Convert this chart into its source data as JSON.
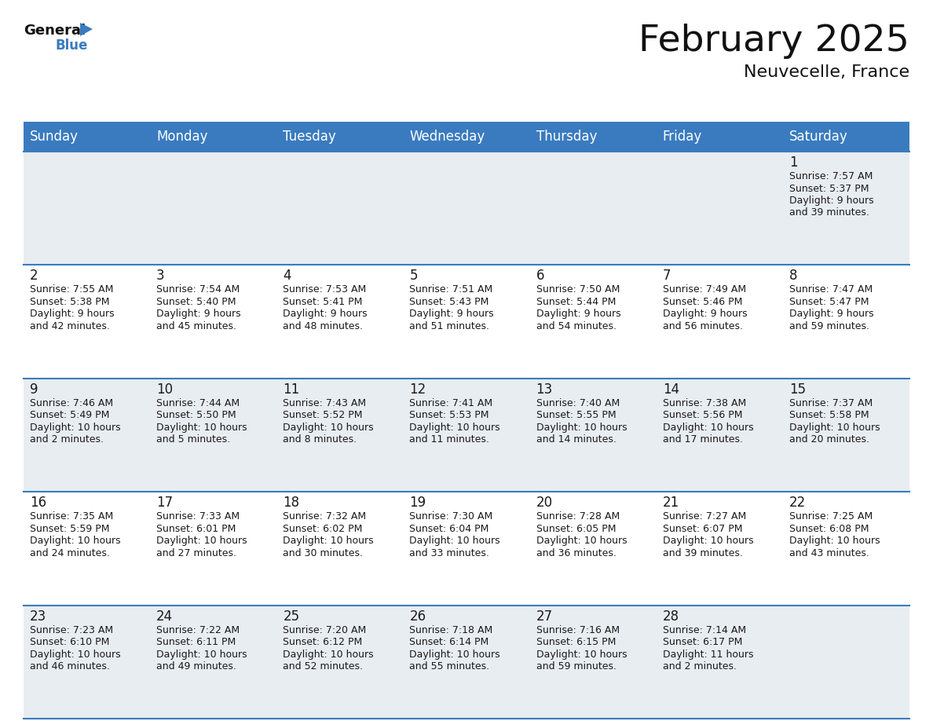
{
  "title": "February 2025",
  "subtitle": "Neuvecelle, France",
  "header_color": "#3a7bbf",
  "header_text_color": "#ffffff",
  "bg_color": "#ffffff",
  "cell_bg_row0": "#e8edf2",
  "cell_bg_row1": "#ffffff",
  "cell_bg_row2": "#e8edf2",
  "cell_bg_row3": "#ffffff",
  "cell_bg_row4": "#e8edf2",
  "line_color": "#3a7bbf",
  "text_color": "#1a1a1a",
  "day_headers": [
    "Sunday",
    "Monday",
    "Tuesday",
    "Wednesday",
    "Thursday",
    "Friday",
    "Saturday"
  ],
  "title_fontsize": 34,
  "subtitle_fontsize": 16,
  "header_fontsize": 12,
  "day_num_fontsize": 12,
  "cell_text_fontsize": 9,
  "logo_general_fontsize": 13,
  "logo_blue_fontsize": 12,
  "days": [
    {
      "day": 1,
      "col": 6,
      "row": 0,
      "sunrise": "7:57 AM",
      "sunset": "5:37 PM",
      "daylight": "9 hours and 39 minutes."
    },
    {
      "day": 2,
      "col": 0,
      "row": 1,
      "sunrise": "7:55 AM",
      "sunset": "5:38 PM",
      "daylight": "9 hours and 42 minutes."
    },
    {
      "day": 3,
      "col": 1,
      "row": 1,
      "sunrise": "7:54 AM",
      "sunset": "5:40 PM",
      "daylight": "9 hours and 45 minutes."
    },
    {
      "day": 4,
      "col": 2,
      "row": 1,
      "sunrise": "7:53 AM",
      "sunset": "5:41 PM",
      "daylight": "9 hours and 48 minutes."
    },
    {
      "day": 5,
      "col": 3,
      "row": 1,
      "sunrise": "7:51 AM",
      "sunset": "5:43 PM",
      "daylight": "9 hours and 51 minutes."
    },
    {
      "day": 6,
      "col": 4,
      "row": 1,
      "sunrise": "7:50 AM",
      "sunset": "5:44 PM",
      "daylight": "9 hours and 54 minutes."
    },
    {
      "day": 7,
      "col": 5,
      "row": 1,
      "sunrise": "7:49 AM",
      "sunset": "5:46 PM",
      "daylight": "9 hours and 56 minutes."
    },
    {
      "day": 8,
      "col": 6,
      "row": 1,
      "sunrise": "7:47 AM",
      "sunset": "5:47 PM",
      "daylight": "9 hours and 59 minutes."
    },
    {
      "day": 9,
      "col": 0,
      "row": 2,
      "sunrise": "7:46 AM",
      "sunset": "5:49 PM",
      "daylight": "10 hours and 2 minutes."
    },
    {
      "day": 10,
      "col": 1,
      "row": 2,
      "sunrise": "7:44 AM",
      "sunset": "5:50 PM",
      "daylight": "10 hours and 5 minutes."
    },
    {
      "day": 11,
      "col": 2,
      "row": 2,
      "sunrise": "7:43 AM",
      "sunset": "5:52 PM",
      "daylight": "10 hours and 8 minutes."
    },
    {
      "day": 12,
      "col": 3,
      "row": 2,
      "sunrise": "7:41 AM",
      "sunset": "5:53 PM",
      "daylight": "10 hours and 11 minutes."
    },
    {
      "day": 13,
      "col": 4,
      "row": 2,
      "sunrise": "7:40 AM",
      "sunset": "5:55 PM",
      "daylight": "10 hours and 14 minutes."
    },
    {
      "day": 14,
      "col": 5,
      "row": 2,
      "sunrise": "7:38 AM",
      "sunset": "5:56 PM",
      "daylight": "10 hours and 17 minutes."
    },
    {
      "day": 15,
      "col": 6,
      "row": 2,
      "sunrise": "7:37 AM",
      "sunset": "5:58 PM",
      "daylight": "10 hours and 20 minutes."
    },
    {
      "day": 16,
      "col": 0,
      "row": 3,
      "sunrise": "7:35 AM",
      "sunset": "5:59 PM",
      "daylight": "10 hours and 24 minutes."
    },
    {
      "day": 17,
      "col": 1,
      "row": 3,
      "sunrise": "7:33 AM",
      "sunset": "6:01 PM",
      "daylight": "10 hours and 27 minutes."
    },
    {
      "day": 18,
      "col": 2,
      "row": 3,
      "sunrise": "7:32 AM",
      "sunset": "6:02 PM",
      "daylight": "10 hours and 30 minutes."
    },
    {
      "day": 19,
      "col": 3,
      "row": 3,
      "sunrise": "7:30 AM",
      "sunset": "6:04 PM",
      "daylight": "10 hours and 33 minutes."
    },
    {
      "day": 20,
      "col": 4,
      "row": 3,
      "sunrise": "7:28 AM",
      "sunset": "6:05 PM",
      "daylight": "10 hours and 36 minutes."
    },
    {
      "day": 21,
      "col": 5,
      "row": 3,
      "sunrise": "7:27 AM",
      "sunset": "6:07 PM",
      "daylight": "10 hours and 39 minutes."
    },
    {
      "day": 22,
      "col": 6,
      "row": 3,
      "sunrise": "7:25 AM",
      "sunset": "6:08 PM",
      "daylight": "10 hours and 43 minutes."
    },
    {
      "day": 23,
      "col": 0,
      "row": 4,
      "sunrise": "7:23 AM",
      "sunset": "6:10 PM",
      "daylight": "10 hours and 46 minutes."
    },
    {
      "day": 24,
      "col": 1,
      "row": 4,
      "sunrise": "7:22 AM",
      "sunset": "6:11 PM",
      "daylight": "10 hours and 49 minutes."
    },
    {
      "day": 25,
      "col": 2,
      "row": 4,
      "sunrise": "7:20 AM",
      "sunset": "6:12 PM",
      "daylight": "10 hours and 52 minutes."
    },
    {
      "day": 26,
      "col": 3,
      "row": 4,
      "sunrise": "7:18 AM",
      "sunset": "6:14 PM",
      "daylight": "10 hours and 55 minutes."
    },
    {
      "day": 27,
      "col": 4,
      "row": 4,
      "sunrise": "7:16 AM",
      "sunset": "6:15 PM",
      "daylight": "10 hours and 59 minutes."
    },
    {
      "day": 28,
      "col": 5,
      "row": 4,
      "sunrise": "7:14 AM",
      "sunset": "6:17 PM",
      "daylight": "11 hours and 2 minutes."
    }
  ]
}
